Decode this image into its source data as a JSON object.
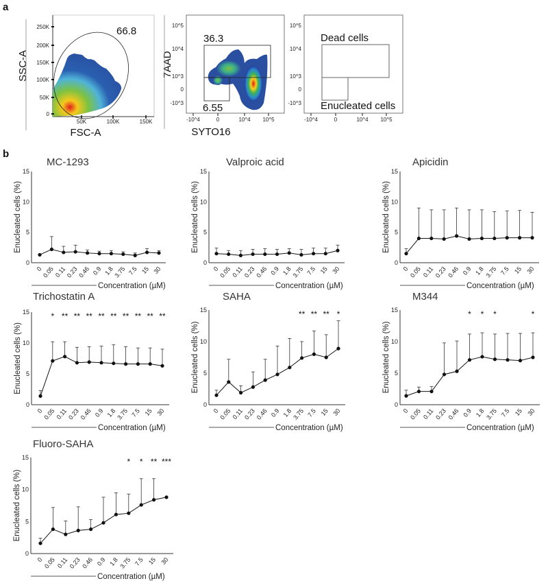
{
  "panel_labels": {
    "a": "a",
    "b": "b"
  },
  "flow_panels": [
    {
      "xlabel": "FSC-A",
      "ylabel": "SSC-A",
      "yticks": [
        "250K",
        "200K",
        "150K",
        "100K",
        "50K",
        "0"
      ],
      "xticks": [
        "50K",
        "100K",
        "150K"
      ],
      "gates": [
        {
          "label": "66.8",
          "shape": "ellipse"
        }
      ]
    },
    {
      "xlabel": "SYTO16",
      "ylabel": "7AAD",
      "yticks": [
        "10^5",
        "10^4",
        "10^3",
        "0",
        "-10^3"
      ],
      "xticks": [
        "-10^4",
        "0",
        "10^4",
        "10^5"
      ],
      "gates": [
        {
          "label": "36.3",
          "shape": "rectangle"
        },
        {
          "label": "6.55",
          "shape": "rectangle"
        }
      ]
    },
    {
      "xlabel": "",
      "ylabel": "",
      "yticks": [
        "10^5",
        "10^4",
        "10^3",
        "0",
        "-10^3"
      ],
      "xticks": [
        "-10^4",
        "0",
        "10^4",
        "10^5"
      ],
      "gates": [
        {
          "label": "Dead cells",
          "shape": "rectangle"
        },
        {
          "label": "Enucleated cells",
          "shape": "rectangle"
        }
      ]
    }
  ],
  "chart_data": [
    {
      "type": "line",
      "title": "MC-1293",
      "xlabel": "Concentration (µM)",
      "ylabel": "Enucleated cells (%)",
      "ylim": [
        0,
        15
      ],
      "yticks": [
        "0",
        "5",
        "10",
        "15"
      ],
      "categories": [
        "0",
        "0.05",
        "0.11",
        "0.23",
        "0.46",
        "0.9",
        "1.8",
        "3.75",
        "7.5",
        "15",
        "30"
      ],
      "values": [
        1.3,
        2.2,
        1.7,
        1.8,
        1.6,
        1.5,
        1.5,
        1.4,
        1.2,
        1.7,
        1.6
      ],
      "error_upper": [
        1.3,
        4.3,
        2.7,
        2.9,
        2.1,
        1.9,
        2.0,
        1.8,
        1.6,
        2.3,
        2.0
      ],
      "significance": [
        "",
        "",
        "",
        "",
        "",
        "",
        "",
        "",
        "",
        "",
        ""
      ]
    },
    {
      "type": "line",
      "title": "Valproic acid",
      "xlabel": "Concentration (µM)",
      "ylabel": "Enucleated cells (%)",
      "ylim": [
        0,
        15
      ],
      "yticks": [
        "0",
        "5",
        "10",
        "15"
      ],
      "categories": [
        "0",
        "0.05",
        "0.11",
        "0.23",
        "0.46",
        "0.9",
        "1.8",
        "3.75",
        "7.5",
        "15",
        "30"
      ],
      "values": [
        1.5,
        1.4,
        1.2,
        1.4,
        1.4,
        1.4,
        1.6,
        1.3,
        1.5,
        1.5,
        2.0
      ],
      "error_upper": [
        2.4,
        2.0,
        2.0,
        2.2,
        2.3,
        2.2,
        2.3,
        2.2,
        2.4,
        2.4,
        2.9
      ],
      "significance": [
        "",
        "",
        "",
        "",
        "",
        "",
        "",
        "",
        "",
        "",
        ""
      ]
    },
    {
      "type": "line",
      "title": "Apicidin",
      "xlabel": "Concentration (µM)",
      "ylabel": "Enucleated cells (%)",
      "ylim": [
        0,
        15
      ],
      "yticks": [
        "0",
        "5",
        "10",
        "15"
      ],
      "categories": [
        "0",
        "0.05",
        "0.11",
        "0.23",
        "0.46",
        "0.9",
        "1.8",
        "3.75",
        "7.5",
        "15",
        "30"
      ],
      "values": [
        1.5,
        4.0,
        4.0,
        3.9,
        4.4,
        3.9,
        4.0,
        4.0,
        4.1,
        4.1,
        4.1
      ],
      "error_upper": [
        2.3,
        9.0,
        8.7,
        8.7,
        9.0,
        8.7,
        8.7,
        8.4,
        8.5,
        8.6,
        8.3
      ],
      "significance": [
        "",
        "",
        "",
        "",
        "",
        "",
        "",
        "",
        "",
        "",
        ""
      ]
    },
    {
      "type": "line",
      "title": "Trichostatin A",
      "xlabel": "Concentration (µM)",
      "ylabel": "Enucleated cells (%)",
      "ylim": [
        0,
        15
      ],
      "yticks": [
        "0",
        "5",
        "10",
        "15"
      ],
      "categories": [
        "0",
        "0.05",
        "0.11",
        "0.23",
        "0.46",
        "0.9",
        "1.8",
        "3.75",
        "7.5",
        "15",
        "30"
      ],
      "values": [
        1.4,
        7.1,
        7.8,
        6.8,
        6.9,
        6.8,
        6.7,
        6.6,
        6.6,
        6.6,
        6.3
      ],
      "error_upper": [
        2.3,
        10.2,
        10.2,
        9.3,
        9.4,
        9.5,
        9.7,
        9.4,
        9.2,
        9.2,
        9.0
      ],
      "significance": [
        "",
        "*",
        "**",
        "**",
        "**",
        "**",
        "**",
        "**",
        "**",
        "**",
        "**"
      ]
    },
    {
      "type": "line",
      "title": "SAHA",
      "xlabel": "Concentration (µM)",
      "ylabel": "Enucleated cells (%)",
      "ylim": [
        0,
        15
      ],
      "yticks": [
        "0",
        "5",
        "10",
        "15"
      ],
      "categories": [
        "0",
        "0.05",
        "0.11",
        "0.23",
        "0.46",
        "0.9",
        "1.8",
        "3.75",
        "7.5",
        "15",
        "30"
      ],
      "values": [
        1.5,
        3.6,
        1.9,
        2.8,
        3.9,
        4.8,
        5.9,
        7.4,
        8.0,
        7.5,
        8.9
      ],
      "error_upper": [
        2.3,
        7.2,
        3.0,
        5.2,
        7.2,
        9.3,
        10.5,
        10.0,
        11.7,
        11.1,
        13.3
      ],
      "significance": [
        "",
        "",
        "",
        "",
        "",
        "",
        "",
        "**",
        "**",
        "**",
        "*"
      ]
    },
    {
      "type": "line",
      "title": "M344",
      "xlabel": "Concentration (µM)",
      "ylabel": "Enucleated cells (%)",
      "ylim": [
        0,
        15
      ],
      "yticks": [
        "0",
        "5",
        "10",
        "15"
      ],
      "categories": [
        "0",
        "0.05",
        "0.11",
        "0.23",
        "0.46",
        "0.9",
        "1.8",
        "3.75",
        "7.5",
        "15",
        "30"
      ],
      "values": [
        1.4,
        2.1,
        2.1,
        4.8,
        5.3,
        7.1,
        7.6,
        7.2,
        7.1,
        7.0,
        7.5
      ],
      "error_upper": [
        2.3,
        2.8,
        2.9,
        9.8,
        10.1,
        11.2,
        11.4,
        11.2,
        11.3,
        11.3,
        11.4
      ],
      "significance": [
        "",
        "",
        "",
        "",
        "",
        "*",
        "*",
        "*",
        "",
        "",
        "*"
      ]
    },
    {
      "type": "line",
      "title": "Fluoro-SAHA",
      "xlabel": "Concentration (µM)",
      "ylabel": "Enucleated cells (%)",
      "ylim": [
        0,
        15
      ],
      "yticks": [
        "0",
        "5",
        "10",
        "15"
      ],
      "categories": [
        "0",
        "0.05",
        "0.11",
        "0.23",
        "0.46",
        "0.9",
        "1.8",
        "3.75",
        "7.5",
        "15",
        "30"
      ],
      "values": [
        1.6,
        3.8,
        3.0,
        3.6,
        3.8,
        4.8,
        6.1,
        6.3,
        7.6,
        8.4,
        8.8
      ],
      "error_upper": [
        2.4,
        7.2,
        5.1,
        7.3,
        5.3,
        8.8,
        9.5,
        9.3,
        11.7,
        11.7,
        null
      ],
      "significance": [
        "",
        "",
        "",
        "",
        "",
        "",
        "",
        "*",
        "*",
        "**",
        "***"
      ]
    }
  ]
}
